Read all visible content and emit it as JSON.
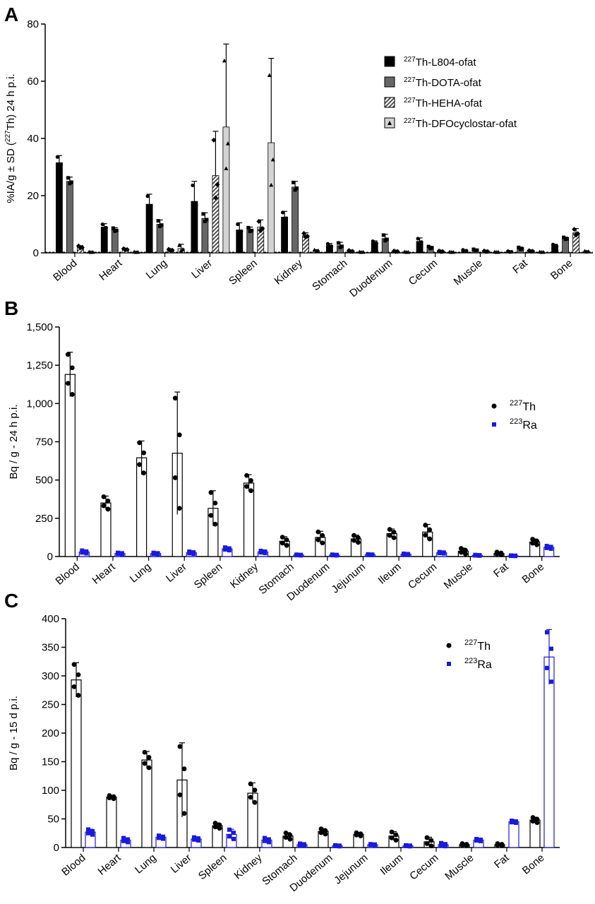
{
  "chart_data": [
    {
      "panel_label": "A",
      "type": "bar",
      "ylabel_pre": "%IA/g ± SD (",
      "ylabel_sup": "227",
      "ylabel_post": "Th) 24 h p.i.",
      "ylim": [
        0,
        80
      ],
      "yticks": [
        "0",
        "20",
        "40",
        "60",
        "80"
      ],
      "categories": [
        "Blood",
        "Heart",
        "Lung",
        "Liver",
        "Spleen",
        "Kidney",
        "Stomach",
        "Duodenum",
        "Cecum",
        "Muscle",
        "Fat",
        "Bone"
      ],
      "legend_position": "top-right",
      "series": [
        {
          "name_sup": "227",
          "name": "Th-L804-ofat",
          "pattern": "solid-black",
          "fill": "#000000",
          "values": [
            31.5,
            9.0,
            17.0,
            18.0,
            8.0,
            12.5,
            2.5,
            3.5,
            4.0,
            0.8,
            0.4,
            2.5
          ],
          "sd": [
            2.5,
            1.2,
            3.5,
            7.0,
            2.5,
            2.0,
            0.8,
            0.7,
            1.2,
            0.3,
            0.2,
            0.5
          ]
        },
        {
          "name_sup": "227",
          "name": "Th-DOTA-ofat",
          "pattern": "solid-gray",
          "fill": "#666666",
          "values": [
            25.0,
            8.0,
            10.0,
            12.0,
            8.0,
            23.0,
            2.5,
            5.0,
            1.8,
            1.0,
            1.5,
            5.0
          ],
          "sd": [
            1.5,
            0.8,
            1.5,
            2.0,
            1.0,
            2.0,
            1.2,
            1.5,
            0.5,
            0.3,
            0.5,
            0.5
          ]
        },
        {
          "name_sup": "227",
          "name": "Th-HEHA-ofat",
          "pattern": "hatched",
          "fill": "#777777",
          "values": [
            2.0,
            1.2,
            1.0,
            27.0,
            9.0,
            6.0,
            0.6,
            0.5,
            0.5,
            0.5,
            0.6,
            7.0
          ],
          "sd": [
            0.5,
            0.3,
            0.3,
            15.5,
            2.5,
            1.0,
            0.3,
            0.2,
            0.2,
            0.2,
            0.2,
            1.5
          ]
        },
        {
          "name_sup": "227",
          "name": "Th-DFOcyclostar-ofat",
          "pattern": "light-gray",
          "fill": "#d3d3d3",
          "values": [
            0.3,
            0.3,
            1.5,
            44.0,
            38.5,
            0.8,
            0.3,
            0.3,
            0.3,
            0.3,
            0.3,
            0.5
          ],
          "sd": [
            0.1,
            0.1,
            1.5,
            29.0,
            29.5,
            0.3,
            0.1,
            0.1,
            0.1,
            0.1,
            0.1,
            0.2
          ]
        }
      ]
    },
    {
      "panel_label": "B",
      "type": "bar",
      "ylabel": "Bq / g - 24 h p.i.",
      "ylim": [
        0,
        1500
      ],
      "yticks": [
        "0",
        "250",
        "500",
        "750",
        "1,000",
        "1,250",
        "1,500"
      ],
      "categories": [
        "Blood",
        "Heart",
        "Lung",
        "Liver",
        "Spleen",
        "Kidney",
        "Stomach",
        "Duodenum",
        "Jejunum",
        "Ileum",
        "Cecum",
        "Muscle",
        "Fat",
        "Bone"
      ],
      "legend_position": "right",
      "series": [
        {
          "name_sup": "227",
          "name": "Th",
          "color": "#000000",
          "marker": "circle",
          "values": [
            1190,
            350,
            645,
            675,
            315,
            480,
            100,
            125,
            115,
            150,
            160,
            35,
            20,
            95
          ],
          "sd": [
            145,
            45,
            110,
            400,
            115,
            55,
            30,
            40,
            25,
            30,
            50,
            20,
            10,
            20
          ]
        },
        {
          "name_sup": "223",
          "name": "Ra",
          "color": "#1a1adf",
          "marker": "square",
          "values": [
            30,
            20,
            20,
            25,
            50,
            30,
            10,
            10,
            12,
            15,
            25,
            8,
            5,
            60
          ],
          "sd": [
            10,
            5,
            5,
            8,
            10,
            8,
            3,
            3,
            3,
            4,
            5,
            3,
            2,
            10
          ]
        }
      ]
    },
    {
      "panel_label": "C",
      "type": "bar",
      "ylabel": "Bq / g - 15 d p.i.",
      "ylim": [
        0,
        400
      ],
      "yticks": [
        "0",
        "50",
        "100",
        "150",
        "200",
        "250",
        "300",
        "350",
        "400"
      ],
      "categories": [
        "Blood",
        "Heart",
        "Lung",
        "Liver",
        "Spleen",
        "Kidney",
        "Stomach",
        "Duodenum",
        "Jejunum",
        "Ileum",
        "Cecum",
        "Muscle",
        "Fat",
        "Bone"
      ],
      "legend_position": "top-right",
      "series": [
        {
          "name_sup": "227",
          "name": "Th",
          "color": "#000000",
          "marker": "circle",
          "values": [
            293,
            88,
            153,
            118,
            38,
            95,
            20,
            28,
            23,
            20,
            10,
            5,
            5,
            48
          ],
          "sd": [
            30,
            3,
            15,
            65,
            5,
            18,
            6,
            5,
            3,
            8,
            8,
            2,
            2,
            5
          ]
        },
        {
          "name_sup": "223",
          "name": "Ra",
          "color": "#1a1adf",
          "marker": "square",
          "values": [
            27,
            13,
            18,
            15,
            23,
            13,
            5,
            3,
            5,
            3,
            5,
            13,
            45,
            333
          ],
          "sd": [
            5,
            4,
            3,
            3,
            9,
            4,
            2,
            1,
            1,
            1,
            3,
            2,
            2,
            48
          ]
        }
      ]
    }
  ]
}
